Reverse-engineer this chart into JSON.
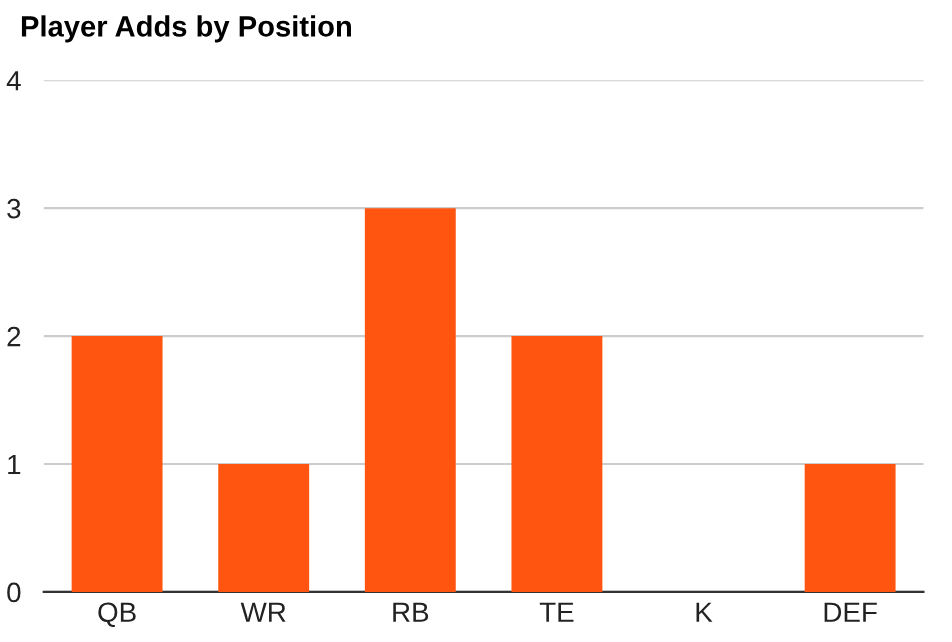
{
  "chart_data": {
    "type": "bar",
    "title": "Player Adds by Position",
    "categories": [
      "QB",
      "WR",
      "RB",
      "TE",
      "K",
      "DEF"
    ],
    "values": [
      2,
      1,
      3,
      2,
      0,
      1
    ],
    "color": "#ff5511",
    "ylim": [
      0,
      4
    ],
    "yticks": [
      0,
      1,
      2,
      3,
      4
    ],
    "grid": "y"
  }
}
